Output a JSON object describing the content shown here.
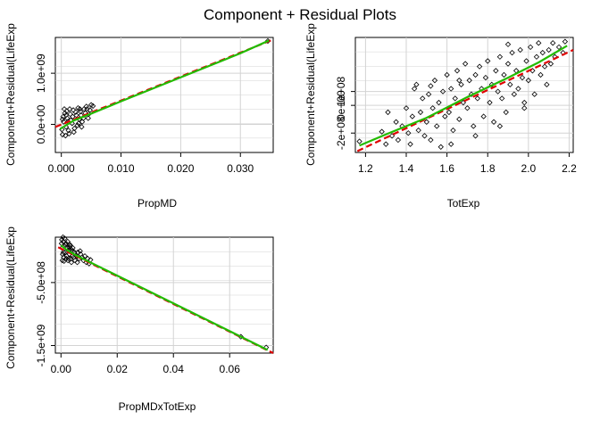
{
  "title": "Component + Residual Plots",
  "colors": {
    "fit_line": "#df0000",
    "smooth_line": "#22bb00",
    "points": "#000000",
    "grid": "#d3d3d3"
  },
  "chart_data": [
    {
      "type": "scatter",
      "xlabel": "PropMD",
      "ylabel": "Component+Residual(LifeExp",
      "xlim": [
        -0.001,
        0.0355
      ],
      "ylim": [
        -550000000,
        1700000000
      ],
      "xticks": [
        0.0,
        0.01,
        0.02,
        0.03
      ],
      "xtick_labels": [
        "0.000",
        "0.010",
        "0.020",
        "0.030"
      ],
      "yticks": [
        0,
        1000000000
      ],
      "ytick_labels": [
        "0.0e+00",
        "1.0e+09"
      ],
      "grid": true,
      "fit": [
        [
          -0.001,
          -50000000.0
        ],
        [
          0.0355,
          1660000000.0
        ]
      ],
      "smooth": [
        [
          -0.0002,
          -90000000.0
        ],
        [
          0.002,
          70000000.0
        ],
        [
          0.005,
          210000000.0
        ],
        [
          0.01,
          450000000.0
        ],
        [
          0.02,
          920000000.0
        ],
        [
          0.03,
          1390000000.0
        ],
        [
          0.0348,
          1640000000.0
        ]
      ],
      "points": [
        [
          0.0002,
          -200000000.0
        ],
        [
          0.0004,
          50000000.0
        ],
        [
          0.0006,
          220000000.0
        ],
        [
          0.0008,
          -50000000.0
        ],
        [
          0.001,
          120000000.0
        ],
        [
          0.0012,
          -120000000.0
        ],
        [
          0.0005,
          300000000.0
        ],
        [
          0.0003,
          150000000.0
        ],
        [
          0.0015,
          200000000.0
        ],
        [
          0.0018,
          20000000.0
        ],
        [
          0.002,
          280000000.0
        ],
        [
          0.0022,
          -80000000.0
        ],
        [
          0.0025,
          180000000.0
        ],
        [
          0.0028,
          320000000.0
        ],
        [
          0.003,
          100000000.0
        ],
        [
          0.0032,
          250000000.0
        ],
        [
          0.0035,
          50000000.0
        ],
        [
          0.0038,
          300000000.0
        ],
        [
          0.004,
          220000000.0
        ],
        [
          0.0042,
          350000000.0
        ],
        [
          0.0045,
          120000000.0
        ],
        [
          0.0048,
          280000000.0
        ],
        [
          0.005,
          380000000.0
        ],
        [
          0.0013,
          -180000000.0
        ],
        [
          0.0016,
          80000000.0
        ],
        [
          0.0009,
          260000000.0
        ],
        [
          0.0007,
          -220000000.0
        ],
        [
          0.0027,
          -20000000.0
        ],
        [
          0.0033,
          180000000.0
        ],
        [
          0.0037,
          120000000.0
        ],
        [
          0.0043,
          300000000.0
        ],
        [
          0.0002,
          100000000.0
        ],
        [
          0.0001,
          -100000000.0
        ],
        [
          0.0011,
          50000000.0
        ],
        [
          0.0019,
          150000000.0
        ],
        [
          0.0024,
          240000000.0
        ],
        [
          0.0029,
          20000000.0
        ],
        [
          0.0031,
          300000000.0
        ],
        [
          0.0046,
          200000000.0
        ],
        [
          0.0053,
          360000000.0
        ],
        [
          0.0021,
          -150000000.0
        ],
        [
          0.0034,
          -50000000.0
        ],
        [
          0.0008,
          180000000.0
        ],
        [
          0.0014,
          300000000.0
        ],
        [
          0.0346,
          1630000000.0
        ]
      ]
    },
    {
      "type": "scatter",
      "xlabel": "TotExp",
      "ylabel": "Component+Residual(LifeExp",
      "xlim": [
        1.15,
        2.22
      ],
      "ylim": [
        -340000000,
        490000000
      ],
      "xticks": [
        1.2,
        1.4,
        1.6,
        1.8,
        2.0,
        2.2
      ],
      "xtick_labels": [
        "1.2",
        "1.4",
        "1.6",
        "1.8",
        "2.0",
        "2.2"
      ],
      "yticks": [
        -200000000,
        0,
        100000000
      ],
      "ytick_labels": [
        "-2e+08",
        "0e+00",
        "1e+08"
      ],
      "grid": true,
      "fit": [
        [
          1.16,
          -330000000.0
        ],
        [
          2.22,
          400000000.0
        ]
      ],
      "smooth": [
        [
          1.17,
          -290000000.0
        ],
        [
          1.3,
          -210000000.0
        ],
        [
          1.5,
          -90000000.0
        ],
        [
          1.7,
          60000000.0
        ],
        [
          1.9,
          200000000.0
        ],
        [
          2.05,
          310000000.0
        ],
        [
          2.19,
          430000000.0
        ]
      ],
      "points": [
        [
          1.17,
          -260000000.0
        ],
        [
          1.28,
          -190000000.0
        ],
        [
          1.3,
          -280000000.0
        ],
        [
          1.31,
          -50000000.0
        ],
        [
          1.33,
          -220000000.0
        ],
        [
          1.35,
          -120000000.0
        ],
        [
          1.36,
          -250000000.0
        ],
        [
          1.38,
          -150000000.0
        ],
        [
          1.4,
          -20000000.0
        ],
        [
          1.41,
          -200000000.0
        ],
        [
          1.42,
          -280000000.0
        ],
        [
          1.43,
          -80000000.0
        ],
        [
          1.45,
          150000000.0
        ],
        [
          1.46,
          -180000000.0
        ],
        [
          1.47,
          -50000000.0
        ],
        [
          1.48,
          50000000.0
        ],
        [
          1.49,
          -220000000.0
        ],
        [
          1.5,
          -120000000.0
        ],
        [
          1.51,
          80000000.0
        ],
        [
          1.52,
          -250000000.0
        ],
        [
          1.53,
          -20000000.0
        ],
        [
          1.54,
          180000000.0
        ],
        [
          1.55,
          -150000000.0
        ],
        [
          1.56,
          20000000.0
        ],
        [
          1.57,
          -300000000.0
        ],
        [
          1.58,
          100000000.0
        ],
        [
          1.59,
          -80000000.0
        ],
        [
          1.6,
          220000000.0
        ],
        [
          1.61,
          -50000000.0
        ],
        [
          1.62,
          120000000.0
        ],
        [
          1.63,
          -180000000.0
        ],
        [
          1.64,
          50000000.0
        ],
        [
          1.65,
          250000000.0
        ],
        [
          1.66,
          -100000000.0
        ],
        [
          1.67,
          150000000.0
        ],
        [
          1.68,
          20000000.0
        ],
        [
          1.69,
          300000000.0
        ],
        [
          1.7,
          -20000000.0
        ],
        [
          1.71,
          180000000.0
        ],
        [
          1.72,
          80000000.0
        ],
        [
          1.73,
          -150000000.0
        ],
        [
          1.74,
          220000000.0
        ],
        [
          1.75,
          50000000.0
        ],
        [
          1.76,
          280000000.0
        ],
        [
          1.77,
          120000000.0
        ],
        [
          1.78,
          -80000000.0
        ],
        [
          1.79,
          200000000.0
        ],
        [
          1.8,
          320000000.0
        ],
        [
          1.81,
          20000000.0
        ],
        [
          1.82,
          150000000.0
        ],
        [
          1.83,
          -120000000.0
        ],
        [
          1.84,
          250000000.0
        ],
        [
          1.85,
          100000000.0
        ],
        [
          1.86,
          350000000.0
        ],
        [
          1.87,
          50000000.0
        ],
        [
          1.88,
          220000000.0
        ],
        [
          1.89,
          -50000000.0
        ],
        [
          1.9,
          300000000.0
        ],
        [
          1.91,
          150000000.0
        ],
        [
          1.92,
          380000000.0
        ],
        [
          1.93,
          80000000.0
        ],
        [
          1.94,
          250000000.0
        ],
        [
          1.95,
          120000000.0
        ],
        [
          1.96,
          400000000.0
        ],
        [
          1.97,
          200000000.0
        ],
        [
          1.98,
          20000000.0
        ],
        [
          1.99,
          320000000.0
        ],
        [
          2.0,
          180000000.0
        ],
        [
          2.01,
          420000000.0
        ],
        [
          2.02,
          250000000.0
        ],
        [
          2.03,
          80000000.0
        ],
        [
          2.04,
          350000000.0
        ],
        [
          2.05,
          450000000.0
        ],
        [
          2.06,
          220000000.0
        ],
        [
          2.07,
          380000000.0
        ],
        [
          2.08,
          280000000.0
        ],
        [
          2.09,
          150000000.0
        ],
        [
          2.1,
          400000000.0
        ],
        [
          2.11,
          300000000.0
        ],
        [
          2.12,
          450000000.0
        ],
        [
          2.13,
          350000000.0
        ],
        [
          2.15,
          420000000.0
        ],
        [
          2.17,
          380000000.0
        ],
        [
          2.18,
          460000000.0
        ],
        [
          1.62,
          -280000000.0
        ],
        [
          1.74,
          -220000000.0
        ],
        [
          1.86,
          -150000000.0
        ],
        [
          1.98,
          -20000000.0
        ],
        [
          1.44,
          120000000.0
        ],
        [
          1.52,
          140000000.0
        ],
        [
          1.66,
          180000000.0
        ],
        [
          1.9,
          440000000.0
        ]
      ]
    },
    {
      "type": "scatter",
      "xlabel": "PropMDxTotExp",
      "ylabel": "Component+Residual(LifeExp",
      "xlim": [
        -0.002,
        0.0755
      ],
      "ylim": [
        -1620000000,
        220000000
      ],
      "xticks": [
        0.0,
        0.02,
        0.04,
        0.06
      ],
      "xtick_labels": [
        "0.00",
        "0.02",
        "0.04",
        "0.06"
      ],
      "yticks": [
        -1500000000,
        -500000000
      ],
      "ytick_labels": [
        "-1.5e+09",
        "-5.0e+08"
      ],
      "grid": true,
      "fit": [
        [
          -0.001,
          60000000.0
        ],
        [
          0.0755,
          -1620000000.0
        ]
      ],
      "smooth": [
        [
          0.0,
          90000000.0
        ],
        [
          0.002,
          20000000.0
        ],
        [
          0.005,
          -60000000.0
        ],
        [
          0.01,
          -170000000.0
        ],
        [
          0.03,
          -610000000.0
        ],
        [
          0.05,
          -1050000000.0
        ],
        [
          0.0735,
          -1570000000.0
        ]
      ],
      "points": [
        [
          0.0002,
          120000000.0
        ],
        [
          0.0004,
          50000000.0
        ],
        [
          0.0006,
          -50000000.0
        ],
        [
          0.0008,
          150000000.0
        ],
        [
          0.001,
          -100000000.0
        ],
        [
          0.0012,
          80000000.0
        ],
        [
          0.0005,
          -150000000.0
        ],
        [
          0.0003,
          180000000.0
        ],
        [
          0.0015,
          -20000000.0
        ],
        [
          0.0018,
          120000000.0
        ],
        [
          0.002,
          -80000000.0
        ],
        [
          0.0022,
          50000000.0
        ],
        [
          0.0025,
          -150000000.0
        ],
        [
          0.0028,
          20000000.0
        ],
        [
          0.003,
          -50000000.0
        ],
        [
          0.0032,
          100000000.0
        ],
        [
          0.0035,
          -120000000.0
        ],
        [
          0.0038,
          20000000.0
        ],
        [
          0.004,
          -80000000.0
        ],
        [
          0.0042,
          50000000.0
        ],
        [
          0.0045,
          -100000000.0
        ],
        [
          0.0048,
          -20000000.0
        ],
        [
          0.005,
          -150000000.0
        ],
        [
          0.0013,
          200000000.0
        ],
        [
          0.0016,
          100000000.0
        ],
        [
          0.0009,
          -20000000.0
        ],
        [
          0.0007,
          220000000.0
        ],
        [
          0.0027,
          -120000000.0
        ],
        [
          0.0033,
          80000000.0
        ],
        [
          0.0037,
          -180000000.0
        ],
        [
          0.0043,
          0.0
        ],
        [
          0.0055,
          -80000000.0
        ],
        [
          0.006,
          -20000000.0
        ],
        [
          0.0065,
          -120000000.0
        ],
        [
          0.007,
          -50000000.0
        ],
        [
          0.0075,
          -100000000.0
        ],
        [
          0.008,
          -150000000.0
        ],
        [
          0.009,
          -180000000.0
        ],
        [
          0.01,
          -200000000.0
        ],
        [
          0.0105,
          -140000000.0
        ],
        [
          0.0019,
          -120000000.0
        ],
        [
          0.0024,
          150000000.0
        ],
        [
          0.0029,
          60000000.0
        ],
        [
          0.0011,
          -160000000.0
        ],
        [
          0.0058,
          -180000000.0
        ],
        [
          0.0068,
          0.0
        ],
        [
          0.0085,
          -80000000.0
        ],
        [
          0.0095,
          -120000000.0
        ],
        [
          0.064,
          -1360000000.0
        ],
        [
          0.073,
          -1530000000.0
        ]
      ]
    }
  ]
}
